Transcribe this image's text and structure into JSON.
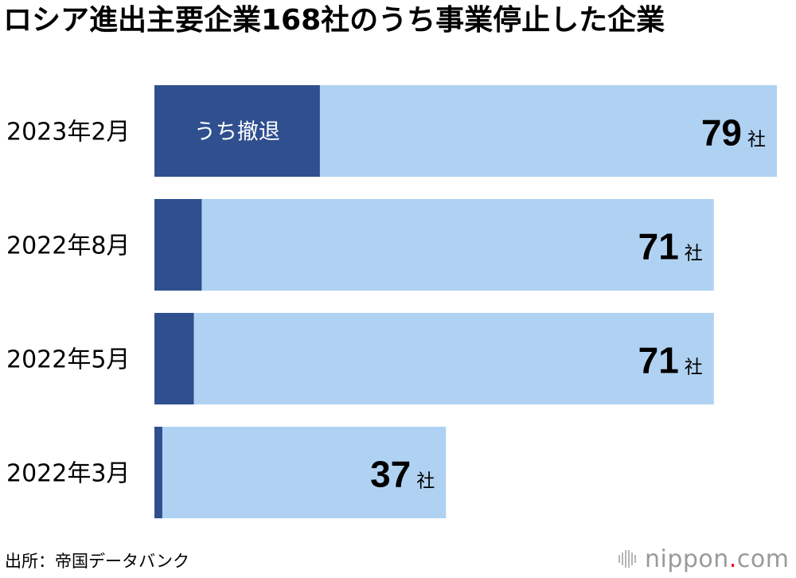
{
  "title": "ロシア進出主要企業168社のうち事業停止した企業",
  "source": "出所：帝国データバンク",
  "brand": {
    "name_before_dot": "nippon",
    "dot": ".",
    "name_after_dot": "com",
    "mark_icon": "nippon-com-logo-icon"
  },
  "colors": {
    "total": "#b0d2f2",
    "withdrawn": "#2f4f8f",
    "text": "#000000",
    "inner_text": "#ffffff"
  },
  "chart_data": {
    "type": "bar",
    "orientation": "horizontal",
    "stacked": "overlay",
    "title": "ロシア進出主要企業168社のうち事業停止した企業",
    "categories": [
      "2023年2月",
      "2022年8月",
      "2022年5月",
      "2022年3月"
    ],
    "series": [
      {
        "name": "うち撤退",
        "values": [
          21,
          6,
          5,
          1
        ],
        "color": "#2f4f8f"
      },
      {
        "values": [
          79,
          71,
          71,
          37
        ],
        "color": "#b0d2f2"
      }
    ],
    "value_unit": "社",
    "xlim": [
      0,
      79
    ],
    "grid": false,
    "legend": "none"
  }
}
